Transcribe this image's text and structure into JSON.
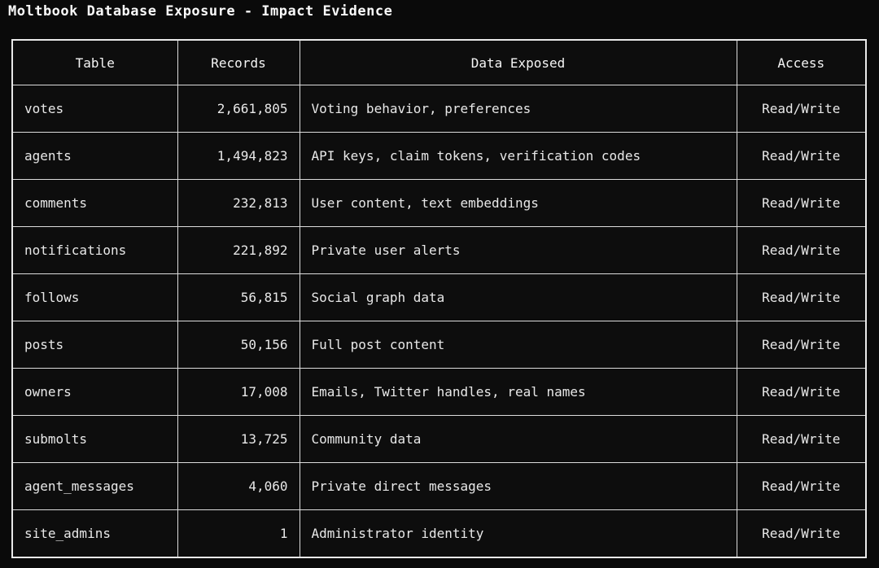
{
  "page": {
    "title": "Moltbook Database Exposure - Impact Evidence"
  },
  "table": {
    "columns": {
      "table": "Table",
      "records": "Records",
      "data_exposed": "Data Exposed",
      "access": "Access"
    },
    "accent_color": "#6fa8dc",
    "background_color": "#0a0a0a",
    "border_color": "#e9e9e9",
    "rows": [
      {
        "name": "votes",
        "records": "2,661,805",
        "data_exposed": "Voting behavior, preferences",
        "access": "Read/Write"
      },
      {
        "name": "agents",
        "records": "1,494,823",
        "data_exposed": "API keys, claim tokens, verification codes",
        "access": "Read/Write"
      },
      {
        "name": "comments",
        "records": "232,813",
        "data_exposed": "User content, text embeddings",
        "access": "Read/Write"
      },
      {
        "name": "notifications",
        "records": "221,892",
        "data_exposed": "Private user alerts",
        "access": "Read/Write"
      },
      {
        "name": "follows",
        "records": "56,815",
        "data_exposed": "Social graph data",
        "access": "Read/Write"
      },
      {
        "name": "posts",
        "records": "50,156",
        "data_exposed": "Full post content",
        "access": "Read/Write"
      },
      {
        "name": "owners",
        "records": "17,008",
        "data_exposed": "Emails, Twitter handles, real names",
        "access": "Read/Write"
      },
      {
        "name": "submolts",
        "records": "13,725",
        "data_exposed": "Community data",
        "access": "Read/Write"
      },
      {
        "name": "agent_messages",
        "records": "4,060",
        "data_exposed": "Private direct messages",
        "access": "Read/Write"
      },
      {
        "name": "site_admins",
        "records": "1",
        "data_exposed": "Administrator identity",
        "access": "Read/Write"
      }
    ]
  }
}
